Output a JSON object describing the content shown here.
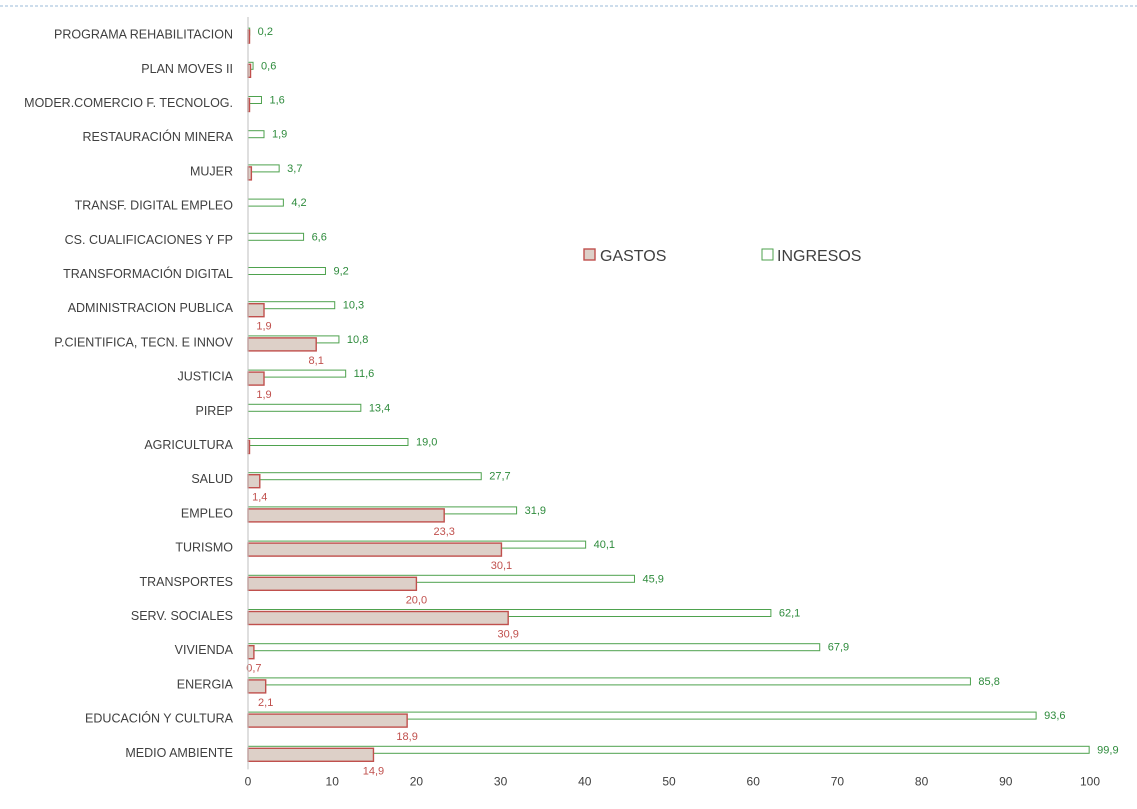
{
  "chart_data": {
    "type": "bar",
    "orientation": "horizontal",
    "categories": [
      "PROGRAMA REHABILITACION",
      "PLAN MOVES II",
      "MODER.COMERCIO F. TECNOLOG.",
      "RESTAURACIÓN MINERA",
      "MUJER",
      "TRANSF. DIGITAL EMPLEO",
      "CS. CUALIFICACIONES Y FP",
      "TRANSFORMACIÓN DIGITAL",
      "ADMINISTRACION PUBLICA",
      "P.CIENTIFICA, TECN. E INNOV",
      "JUSTICIA",
      "PIREP",
      "AGRICULTURA",
      "SALUD",
      "EMPLEO",
      "TURISMO",
      "TRANSPORTES",
      "SERV. SOCIALES",
      "VIVIENDA",
      "ENERGIA",
      "EDUCACIÓN Y CULTURA",
      "MEDIO AMBIENTE"
    ],
    "series": [
      {
        "name": "GASTOS",
        "color": "#c0504d",
        "fill": "#ddd0c8",
        "values": [
          0.1,
          0.3,
          0.1,
          0,
          0.4,
          0,
          0,
          0,
          1.9,
          8.1,
          1.9,
          0,
          0.1,
          1.4,
          23.3,
          30.1,
          20.0,
          30.9,
          0.7,
          2.1,
          18.9,
          14.9
        ],
        "labels": [
          "",
          "",
          "",
          "",
          "",
          "",
          "",
          "",
          "1,9",
          "8,1",
          "1,9",
          "",
          "",
          "1,4",
          "23,3",
          "30,1",
          "20,0",
          "30,9",
          "0,7",
          "2,1",
          "18,9",
          "14,9"
        ]
      },
      {
        "name": "INGRESOS",
        "color": "#4ea24e",
        "fill": "#ffffff",
        "values": [
          0.2,
          0.6,
          1.6,
          1.9,
          3.7,
          4.2,
          6.6,
          9.2,
          10.3,
          10.8,
          11.6,
          13.4,
          19.0,
          27.7,
          31.9,
          40.1,
          45.9,
          62.1,
          67.9,
          85.8,
          93.6,
          99.9
        ],
        "labels": [
          "0,2",
          "0,6",
          "1,6",
          "1,9",
          "3,7",
          "4,2",
          "6,6",
          "9,2",
          "10,3",
          "10,8",
          "11,6",
          "13,4",
          "19,0",
          "27,7",
          "31,9",
          "40,1",
          "45,9",
          "62,1",
          "67,9",
          "85,8",
          "93,6",
          "99,9"
        ]
      }
    ],
    "x_ticks": [
      "0",
      "10",
      "20",
      "30",
      "40",
      "50",
      "60",
      "70",
      "80",
      "90",
      "100"
    ],
    "xlim": [
      0,
      100
    ],
    "grid": false,
    "legend": "center-right"
  }
}
